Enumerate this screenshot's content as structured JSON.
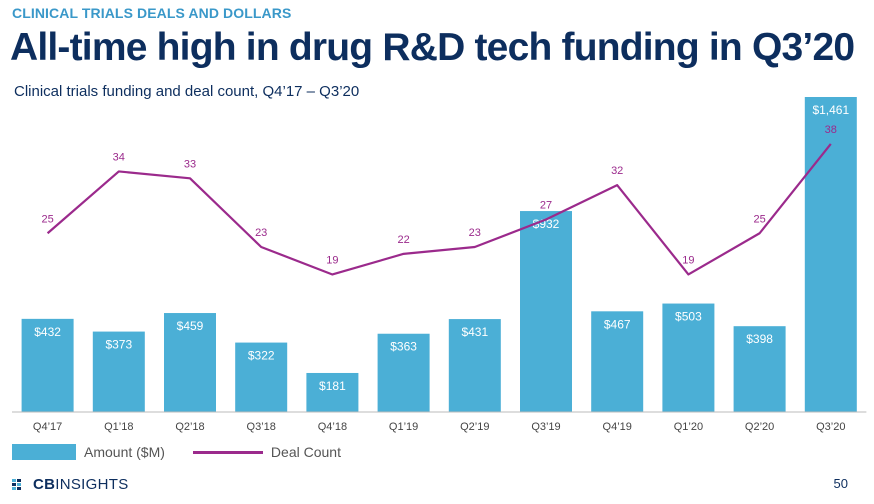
{
  "header": {
    "eyebrow": "CLINICAL TRIALS DEALS AND DOLLARS",
    "title": "All-time high in drug R&D tech funding in Q3’20",
    "subtitle": "Clinical trials funding and deal count, Q4’17 – Q3’20"
  },
  "chart_data": {
    "type": "bar",
    "title": "Clinical trials funding and deal count, Q4’17 – Q3’20",
    "categories": [
      "Q4'17",
      "Q1'18",
      "Q2'18",
      "Q3'18",
      "Q4'18",
      "Q1'19",
      "Q2'19",
      "Q3'19",
      "Q4'19",
      "Q1'20",
      "Q2'20",
      "Q3'20"
    ],
    "series": [
      {
        "name": "Amount ($M)",
        "type": "bar",
        "values": [
          432,
          373,
          459,
          322,
          181,
          363,
          431,
          932,
          467,
          503,
          398,
          1461
        ],
        "labels": [
          "$432",
          "$373",
          "$459",
          "$322",
          "$181",
          "$363",
          "$431",
          "$932",
          "$467",
          "$503",
          "$398",
          "$1,461"
        ],
        "color": "#4bafd6"
      },
      {
        "name": "Deal Count",
        "type": "line",
        "values": [
          25,
          34,
          33,
          23,
          19,
          22,
          23,
          27,
          32,
          19,
          25,
          38
        ],
        "color": "#9b2a8c"
      }
    ],
    "xlabel": "",
    "ylabel": "",
    "grid": false,
    "legend_position": "bottom-left"
  },
  "legend": {
    "bar_label": "Amount ($M)",
    "line_label": "Deal Count"
  },
  "footer": {
    "logo_bold": "CB",
    "logo_rest": "INSIGHTS",
    "page_number": "50"
  },
  "colors": {
    "bar": "#4bafd6",
    "line": "#9b2a8c",
    "title": "#0d2e5e",
    "eyebrow": "#3a98c9"
  }
}
